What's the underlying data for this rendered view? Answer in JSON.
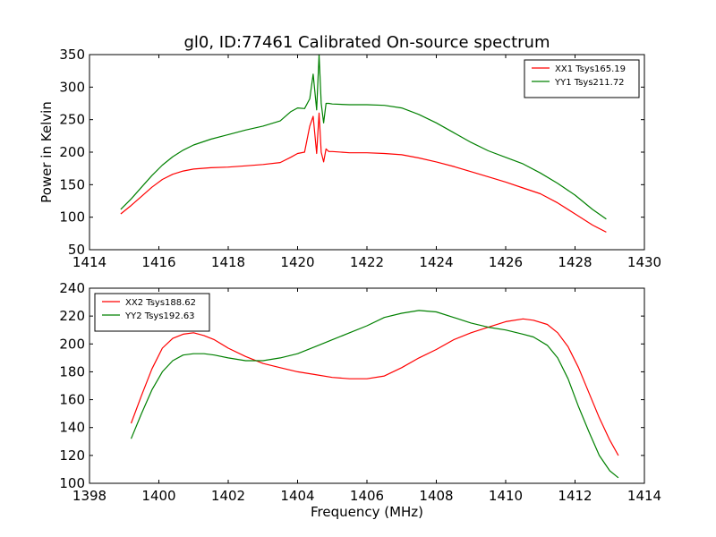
{
  "figure": {
    "title": "gl0, ID:77461 Calibrated On-source spectrum"
  },
  "chart_data": [
    {
      "type": "line",
      "title": "gl0, ID:77461 Calibrated On-source spectrum",
      "xlabel": "",
      "ylabel": "Power in Kelvin",
      "xlim": [
        1414,
        1430
      ],
      "ylim": [
        50,
        350
      ],
      "xticks": [
        1414,
        1416,
        1418,
        1420,
        1422,
        1424,
        1426,
        1428,
        1430
      ],
      "yticks": [
        50,
        100,
        150,
        200,
        250,
        300,
        350
      ],
      "grid": false,
      "legend_position": "top-right",
      "series": [
        {
          "name": "XX1 Tsys165.19",
          "color": "#ff0000",
          "x": [
            1414.9,
            1415.2,
            1415.5,
            1415.8,
            1416.1,
            1416.4,
            1416.7,
            1417.0,
            1417.5,
            1418.0,
            1418.5,
            1419.0,
            1419.5,
            1419.8,
            1420.0,
            1420.2,
            1420.35,
            1420.45,
            1420.55,
            1420.62,
            1420.68,
            1420.75,
            1420.82,
            1420.9,
            1421.0,
            1421.5,
            1422.0,
            1422.5,
            1423.0,
            1423.5,
            1424.0,
            1424.5,
            1425.0,
            1425.5,
            1426.0,
            1426.5,
            1427.0,
            1427.5,
            1428.0,
            1428.5,
            1428.9
          ],
          "y": [
            105,
            118,
            132,
            146,
            158,
            166,
            171,
            174,
            176,
            177,
            179,
            181,
            184,
            192,
            198,
            200,
            240,
            255,
            198,
            260,
            200,
            185,
            205,
            201,
            201,
            199,
            199,
            198,
            196,
            191,
            185,
            178,
            170,
            162,
            154,
            145,
            136,
            122,
            105,
            88,
            77
          ]
        },
        {
          "name": "YY1 Tsys211.72",
          "color": "#008000",
          "x": [
            1414.9,
            1415.2,
            1415.5,
            1415.8,
            1416.1,
            1416.4,
            1416.7,
            1417.0,
            1417.5,
            1418.0,
            1418.5,
            1419.0,
            1419.5,
            1419.8,
            1420.0,
            1420.2,
            1420.35,
            1420.45,
            1420.55,
            1420.62,
            1420.68,
            1420.75,
            1420.82,
            1420.9,
            1421.0,
            1421.5,
            1422.0,
            1422.5,
            1423.0,
            1423.5,
            1424.0,
            1424.5,
            1425.0,
            1425.5,
            1426.0,
            1426.5,
            1427.0,
            1427.5,
            1428.0,
            1428.5,
            1428.9
          ],
          "y": [
            112,
            128,
            146,
            164,
            180,
            193,
            203,
            211,
            220,
            227,
            234,
            240,
            248,
            262,
            268,
            267,
            282,
            320,
            265,
            350,
            275,
            245,
            275,
            275,
            274,
            273,
            273,
            272,
            268,
            258,
            245,
            230,
            215,
            202,
            192,
            182,
            168,
            152,
            134,
            112,
            97
          ]
        }
      ]
    },
    {
      "type": "line",
      "title": "",
      "xlabel": "Frequency (MHz)",
      "ylabel": "",
      "xlim": [
        1398,
        1414
      ],
      "ylim": [
        100,
        240
      ],
      "xticks": [
        1398,
        1400,
        1402,
        1404,
        1406,
        1408,
        1410,
        1412,
        1414
      ],
      "yticks": [
        100,
        120,
        140,
        160,
        180,
        200,
        220,
        240
      ],
      "grid": false,
      "legend_position": "top-left",
      "series": [
        {
          "name": "XX2 Tsys188.62",
          "color": "#ff0000",
          "x": [
            1399.2,
            1399.5,
            1399.8,
            1400.1,
            1400.4,
            1400.7,
            1401.0,
            1401.3,
            1401.6,
            1402.0,
            1402.5,
            1403.0,
            1403.5,
            1404.0,
            1404.5,
            1405.0,
            1405.5,
            1406.0,
            1406.5,
            1407.0,
            1407.5,
            1408.0,
            1408.5,
            1409.0,
            1409.5,
            1410.0,
            1410.5,
            1410.8,
            1411.2,
            1411.5,
            1411.8,
            1412.1,
            1412.4,
            1412.7,
            1413.0,
            1413.25
          ],
          "y": [
            143,
            163,
            182,
            197,
            204,
            207,
            208,
            206,
            203,
            197,
            191,
            186,
            183,
            180,
            178,
            176,
            175,
            175,
            177,
            183,
            190,
            196,
            203,
            208,
            212,
            216,
            218,
            217,
            214,
            208,
            198,
            183,
            165,
            147,
            131,
            120
          ]
        },
        {
          "name": "YY2 Tsys192.63",
          "color": "#008000",
          "x": [
            1399.2,
            1399.5,
            1399.8,
            1400.1,
            1400.4,
            1400.7,
            1401.0,
            1401.3,
            1401.6,
            1402.0,
            1402.5,
            1403.0,
            1403.5,
            1404.0,
            1404.5,
            1405.0,
            1405.5,
            1406.0,
            1406.5,
            1407.0,
            1407.5,
            1408.0,
            1408.5,
            1409.0,
            1409.5,
            1410.0,
            1410.5,
            1410.8,
            1411.2,
            1411.5,
            1411.8,
            1412.1,
            1412.4,
            1412.7,
            1413.0,
            1413.25
          ],
          "y": [
            132,
            150,
            167,
            180,
            188,
            192,
            193,
            193,
            192,
            190,
            188,
            188,
            190,
            193,
            198,
            203,
            208,
            213,
            219,
            222,
            224,
            223,
            219,
            215,
            212,
            210,
            207,
            205,
            199,
            190,
            175,
            155,
            137,
            120,
            109,
            104
          ]
        }
      ]
    }
  ]
}
